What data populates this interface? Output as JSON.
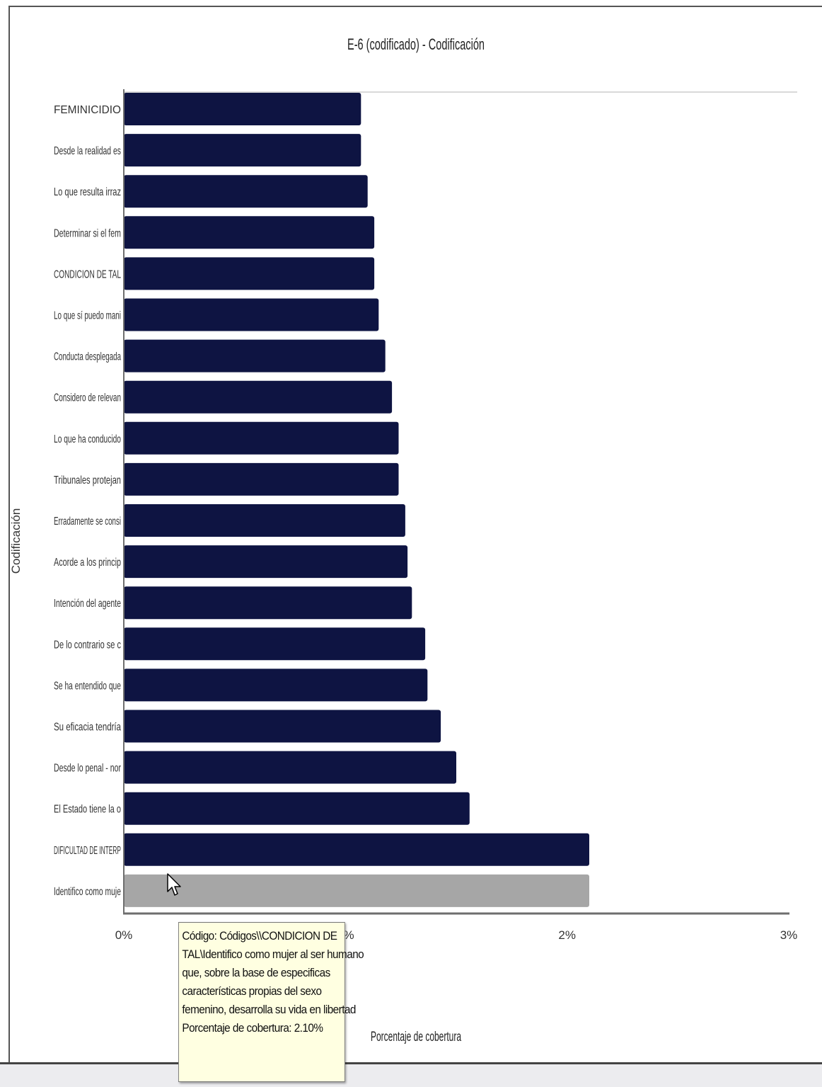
{
  "chart_data": {
    "type": "bar",
    "orientation": "horizontal",
    "title": "E-6 (codificado) - Codificación",
    "xlabel": "Porcentaje de cobertura",
    "ylabel": "Codificación",
    "xlim": [
      0,
      3
    ],
    "x_ticks": [
      "0%",
      "1%",
      "2%",
      "3%"
    ],
    "categories": [
      "FEMINICIDIO",
      "Desde la realidad es",
      "Lo que resulta irraz",
      "Determinar si el fem",
      "CONDICION DE TAL",
      "Lo que sí puedo mani",
      "Conducta desplegada",
      "Considero de relevan",
      "Lo que ha conducido",
      "Tribunales protejan",
      "Erradamente se consi",
      "Acorde a los princip",
      "Intención del agente",
      "De lo contrario se c",
      "Se ha entendido que",
      "Su eficacia tendría",
      "Desde lo penal - nor",
      "El Estado tiene la o",
      "DIFICULTAD DE INTERP",
      "Identifico como muje"
    ],
    "values": [
      1.07,
      1.07,
      1.1,
      1.13,
      1.13,
      1.15,
      1.18,
      1.21,
      1.24,
      1.24,
      1.27,
      1.28,
      1.3,
      1.36,
      1.37,
      1.43,
      1.5,
      1.56,
      2.1,
      2.1
    ],
    "highlighted_index": 19,
    "grid": false,
    "legend": "none"
  },
  "colors": {
    "bar": "#0e1442",
    "bar_highlighted": "#a6a6a6",
    "axis": "#6e6e6e",
    "tooltip_bg": "#ffffe1"
  },
  "tooltip": {
    "lines": [
      "Código: Códigos\\\\CONDICION DE",
      "TAL\\Identifico como mujer al ser humano",
      "que, sobre la base de especificas",
      "características propias del sexo",
      "femenino, desarrolla su vida en libertad",
      "Porcentaje de cobertura: 2.10%"
    ]
  },
  "cursor": {
    "icon": "mouse-pointer-icon"
  }
}
